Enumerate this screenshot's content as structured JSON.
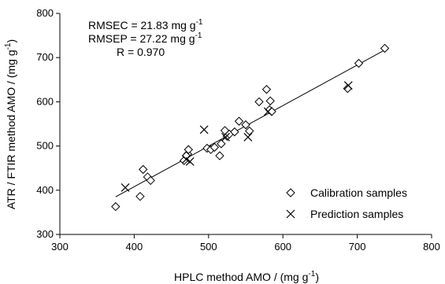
{
  "chart_data": {
    "type": "scatter",
    "title": "",
    "xlabel": "HPLC method AMO / (mg g",
    "xlabel_sup": "-1",
    "xlabel_end": ")",
    "ylabel": "ATR / FTIR method AMO / (mg g",
    "ylabel_sup": "-1",
    "ylabel_end": ")",
    "xlim": [
      300,
      800
    ],
    "ylim": [
      300,
      800
    ],
    "xticks": [
      "300",
      "400",
      "500",
      "600",
      "700",
      "800"
    ],
    "yticks": [
      "300",
      "400",
      "500",
      "600",
      "700",
      "800"
    ],
    "grid": false,
    "legend_position": "bottom-right",
    "annotations": [
      {
        "text": "RMSEC = 21.83 mg g",
        "sup": "-1"
      },
      {
        "text": "RMSEP = 27.22 mg g",
        "sup": "-1"
      },
      {
        "text": "R = 0.970",
        "sup": ""
      }
    ],
    "fit_line": {
      "x": [
        375,
        738
      ],
      "y": [
        385,
        718
      ]
    },
    "series": [
      {
        "name": "Calibration samples",
        "marker": "diamond",
        "points": [
          [
            375,
            363
          ],
          [
            408,
            386
          ],
          [
            412,
            447
          ],
          [
            418,
            430
          ],
          [
            422,
            422
          ],
          [
            467,
            467
          ],
          [
            472,
            482
          ],
          [
            473,
            492
          ],
          [
            470,
            478
          ],
          [
            498,
            495
          ],
          [
            503,
            492
          ],
          [
            508,
            497
          ],
          [
            515,
            478
          ],
          [
            517,
            505
          ],
          [
            522,
            535
          ],
          [
            525,
            522
          ],
          [
            528,
            527
          ],
          [
            535,
            532
          ],
          [
            541,
            556
          ],
          [
            550,
            548
          ],
          [
            555,
            534
          ],
          [
            568,
            600
          ],
          [
            578,
            628
          ],
          [
            583,
            602
          ],
          [
            582,
            582
          ],
          [
            585,
            578
          ],
          [
            687,
            630
          ],
          [
            702,
            687
          ],
          [
            737,
            721
          ]
        ]
      },
      {
        "name": "Prediction samples",
        "marker": "x",
        "points": [
          [
            388,
            406
          ],
          [
            470,
            470
          ],
          [
            475,
            465
          ],
          [
            494,
            537
          ],
          [
            523,
            520
          ],
          [
            553,
            520
          ],
          [
            580,
            578
          ],
          [
            688,
            637
          ]
        ]
      }
    ]
  }
}
